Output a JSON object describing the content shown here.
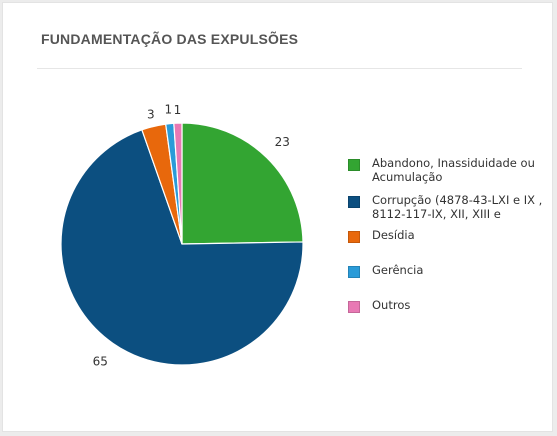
{
  "header": {
    "title": "FUNDAMENTAÇÃO DAS EXPULSÕES"
  },
  "chart_data": {
    "type": "pie",
    "title": "FUNDAMENTAÇÃO DAS EXPULSÕES",
    "legend_position": "right",
    "slices": [
      {
        "label": "Abandono, Inassiduidade ou Acumulação",
        "value": 23,
        "value_label": "23",
        "color": "#33a532"
      },
      {
        "label": "Corrupção (4878-43-LXI e IX , 8112-117-IX, XII, XIII e",
        "value": 65,
        "value_label": "65",
        "color": "#0c4f80"
      },
      {
        "label": "Desídia",
        "value": 3,
        "value_label": "3",
        "color": "#e8680c"
      },
      {
        "label": "Gerência",
        "value": 1,
        "value_label": "1",
        "color": "#2a9bd8"
      },
      {
        "label": "Outros",
        "value": 1,
        "value_label": "1",
        "color": "#e879b4"
      }
    ]
  }
}
